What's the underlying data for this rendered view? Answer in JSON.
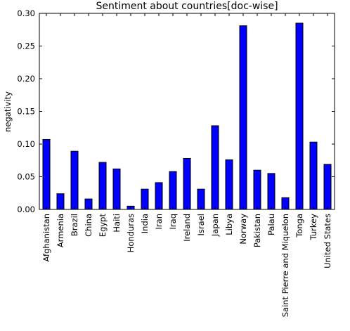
{
  "chart_data": {
    "type": "bar",
    "title": "Sentiment about countries[doc-wise]",
    "xlabel": "",
    "ylabel": "negativity",
    "ylim": [
      0,
      0.3
    ],
    "yticks": [
      "0.00",
      "0.05",
      "0.10",
      "0.15",
      "0.20",
      "0.25",
      "0.30"
    ],
    "categories": [
      "Afghanistan",
      "Armenia",
      "Brazil",
      "China",
      "Egypt",
      "Haiti",
      "Honduras",
      "India",
      "Iran",
      "Iraq",
      "Ireland",
      "Israel",
      "Japan",
      "Libya",
      "Norway",
      "Pakistan",
      "Palau",
      "Saint Pierre and Miquelon",
      "Tonga",
      "Turkey",
      "United States"
    ],
    "values": [
      0.107,
      0.024,
      0.089,
      0.016,
      0.072,
      0.062,
      0.005,
      0.031,
      0.041,
      0.058,
      0.078,
      0.031,
      0.128,
      0.076,
      0.281,
      0.06,
      0.055,
      0.018,
      0.285,
      0.103,
      0.069
    ],
    "bar_color": "#0000ff",
    "edge_color": "#000000",
    "grid": false,
    "legend": "none"
  }
}
